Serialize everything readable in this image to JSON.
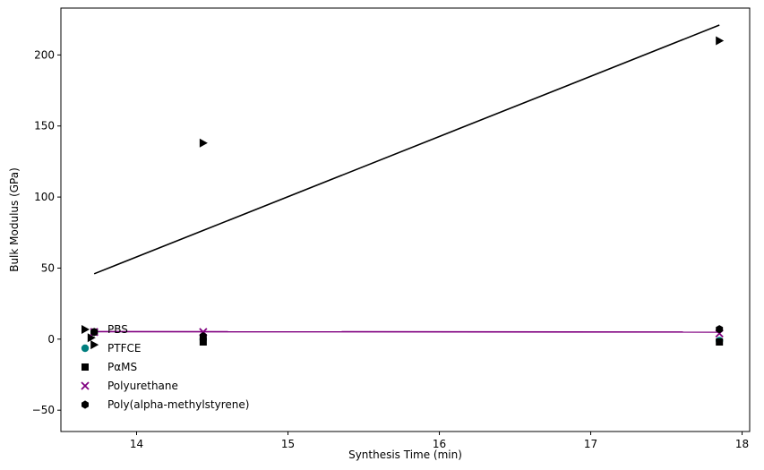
{
  "chart_data": {
    "type": "scatter",
    "title": "",
    "xlabel": "Synthesis Time (min)",
    "ylabel": "Bulk Modulus (GPa)",
    "xlim": [
      13.5,
      18.05
    ],
    "ylim": [
      -65,
      233
    ],
    "xticks": [
      14,
      15,
      16,
      17,
      18
    ],
    "yticks": [
      -50,
      0,
      50,
      100,
      150,
      200
    ],
    "grid": false,
    "legend_position": "lower-left",
    "series": [
      {
        "name": "PBS",
        "marker": "triangle-right",
        "color": "#000000",
        "x": [
          13.7,
          13.72,
          14.44,
          17.85
        ],
        "y": [
          1,
          -4,
          138,
          210
        ]
      },
      {
        "name": "PTFCE",
        "marker": "circle",
        "color": "#007f7f",
        "x": [
          13.72,
          14.44,
          17.85
        ],
        "y": [
          5,
          0,
          -1
        ]
      },
      {
        "name": "PαMS",
        "marker": "square",
        "color": "#000000",
        "x": [
          13.72,
          14.44,
          17.85
        ],
        "y": [
          5,
          -2,
          -2
        ]
      },
      {
        "name": "Polyurethane",
        "marker": "x",
        "color": "#800080",
        "x": [
          13.72,
          14.44,
          17.85
        ],
        "y": [
          5,
          5,
          4
        ]
      },
      {
        "name": "Poly(alpha-methylstyrene)",
        "marker": "hexagon",
        "color": "#000000",
        "x": [
          13.72,
          14.44,
          17.85
        ],
        "y": [
          5,
          2,
          7
        ]
      }
    ],
    "fit_lines": [
      {
        "series": "PBS",
        "color": "#000000",
        "x": [
          13.72,
          17.85
        ],
        "y": [
          46,
          221
        ]
      },
      {
        "series": "Polyurethane",
        "color": "#800080",
        "x": [
          13.72,
          17.85
        ],
        "y": [
          5.3,
          5.0
        ]
      }
    ]
  }
}
